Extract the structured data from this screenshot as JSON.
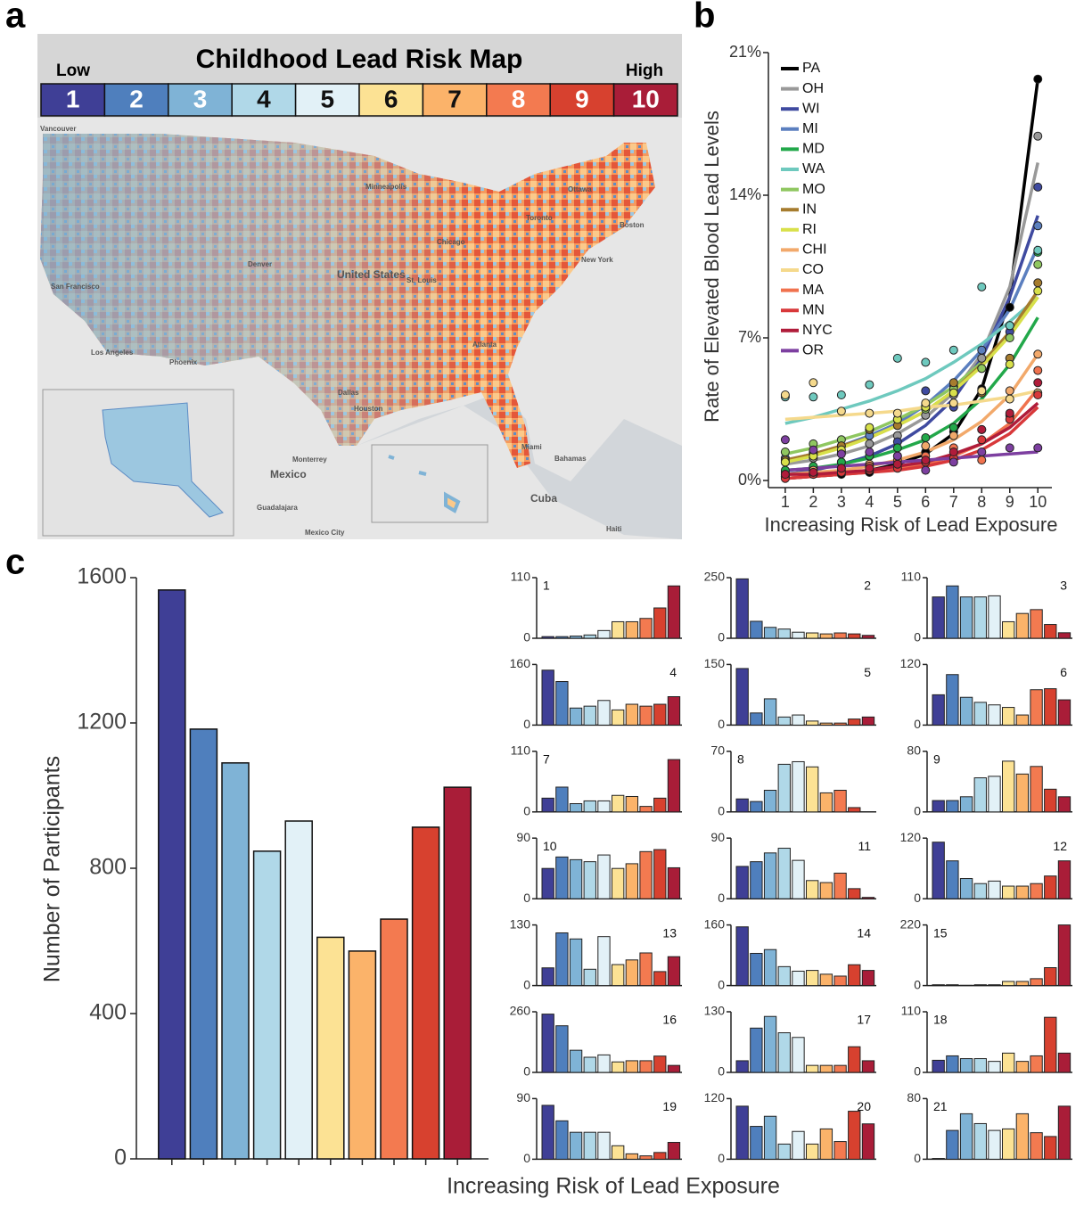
{
  "panel_labels": [
    "a",
    "b",
    "c"
  ],
  "map": {
    "title": "Childhood Lead Risk Map",
    "low_label": "Low",
    "high_label": "High",
    "scale": [
      1,
      2,
      3,
      4,
      5,
      6,
      7,
      8,
      9,
      10
    ],
    "colors": [
      "#3f3f96",
      "#4f7fbd",
      "#7fb3d6",
      "#b0d8e8",
      "#e2f1f7",
      "#fce294",
      "#fbb36a",
      "#f37a50",
      "#d7412f",
      "#a91d38"
    ],
    "place_labels": [
      "Vancouver",
      "Minneapolis",
      "Ottawa",
      "Toronto",
      "Boston",
      "Chicago",
      "New York",
      "Denver",
      "United States",
      "San Francisco",
      "St. Louis",
      "Los Angeles",
      "Phoenix",
      "Dallas",
      "Atlanta",
      "Houston",
      "Monterrey",
      "Mexico",
      "Miami",
      "Bahamas",
      "Cuba",
      "Guadalajara",
      "Mexico City",
      "Haiti"
    ]
  },
  "chart_data": [
    {
      "type": "line",
      "x_label": "Increasing Risk of Lead Exposure",
      "y_label": "Rate of Elevated Blood Lead Levels",
      "x": [
        1,
        2,
        3,
        4,
        5,
        6,
        7,
        8,
        9,
        10
      ],
      "xlim": [
        0.4,
        10.5
      ],
      "xticks": [
        1,
        2,
        3,
        4,
        5,
        6,
        7,
        8,
        9,
        10
      ],
      "ylim": [
        0,
        21
      ],
      "yticks": [
        {
          "value": 0,
          "label": "0%"
        },
        {
          "value": 7,
          "label": "7%"
        },
        {
          "value": 14,
          "label": "14%"
        },
        {
          "value": 21,
          "label": "21%"
        }
      ],
      "series": [
        {
          "name": "PA",
          "color": "#000000",
          "values": [
            0.2,
            0.3,
            0.3,
            0.4,
            0.8,
            1.4,
            2.4,
            4.5,
            8.5,
            19.7
          ],
          "fit": [
            0.1,
            0.2,
            0.3,
            0.5,
            0.8,
            1.3,
            2.3,
            4.5,
            9,
            19.7
          ]
        },
        {
          "name": "OH",
          "color": "#999999",
          "values": [
            0.9,
            1.1,
            1.4,
            1.8,
            2.2,
            3.2,
            4.2,
            6,
            7.6,
            16.9
          ],
          "fit": [
            0.8,
            1,
            1.3,
            1.7,
            2.3,
            3.1,
            4.3,
            6.2,
            9.5,
            15.6
          ]
        },
        {
          "name": "WI",
          "color": "#3f4aa0",
          "values": [
            0.4,
            0.6,
            0.9,
            1.2,
            1.9,
            4.4,
            3.6,
            5.5,
            7.3,
            14.4
          ],
          "fit": [
            0.3,
            0.5,
            0.8,
            1.2,
            1.8,
            2.7,
            4,
            6,
            9,
            13
          ]
        },
        {
          "name": "MI",
          "color": "#5b7fbf",
          "values": [
            1.1,
            1.4,
            1.7,
            2.2,
            2.7,
            3.6,
            4.6,
            6.4,
            7.6,
            12.5
          ],
          "fit": [
            1,
            1.3,
            1.7,
            2.2,
            2.8,
            3.7,
            4.9,
            6.4,
            8.4,
            11.5
          ]
        },
        {
          "name": "MD",
          "color": "#22a84a",
          "values": [
            0.5,
            0.7,
            0.9,
            1.2,
            1.6,
            2.1,
            2.6,
            4.3,
            6,
            11.2
          ],
          "fit": [
            0.5,
            0.6,
            0.8,
            1.1,
            1.5,
            2,
            2.8,
            4,
            5.7,
            8
          ]
        },
        {
          "name": "WA",
          "color": "#6ec9be",
          "values": [
            4.1,
            4.1,
            4.2,
            4.7,
            6,
            5.8,
            6.4,
            9.5,
            7.6,
            11.3
          ],
          "fit": [
            2.8,
            3.1,
            3.5,
            3.9,
            4.4,
            5,
            5.8,
            6.7,
            7.8,
            9
          ]
        },
        {
          "name": "MO",
          "color": "#8fc760",
          "values": [
            1.4,
            1.8,
            2,
            2.5,
            3,
            3.5,
            4.5,
            5.5,
            7,
            10.6
          ],
          "fit": [
            1.3,
            1.6,
            2,
            2.4,
            3,
            3.7,
            4.6,
            5.8,
            7.2,
            9
          ]
        },
        {
          "name": "IN",
          "color": "#a67c2e",
          "values": [
            1,
            1.3,
            1.7,
            2.5,
            2.7,
            3.7,
            4.8,
            4.3,
            6,
            9.7
          ],
          "fit": [
            1,
            1.3,
            1.7,
            2.1,
            2.7,
            3.4,
            4.4,
            5.7,
            7.3,
            9.3
          ]
        },
        {
          "name": "RI",
          "color": "#d8e04a",
          "values": [
            0.9,
            1.2,
            1.5,
            2.6,
            3,
            3.6,
            4.3,
            4.4,
            5.7,
            9.3
          ],
          "fit": [
            0.9,
            1.2,
            1.6,
            2.1,
            2.7,
            3.4,
            4.4,
            5.6,
            7.1,
            9
          ]
        },
        {
          "name": "CHI",
          "color": "#f2a96b",
          "values": [
            0.3,
            0.5,
            0.6,
            0.8,
            1.2,
            1.7,
            2.2,
            2.5,
            4.4,
            6.2
          ],
          "fit": [
            0.3,
            0.4,
            0.5,
            0.7,
            1,
            1.4,
            2,
            2.9,
            4.2,
            6.2
          ]
        },
        {
          "name": "CO",
          "color": "#f5d98c",
          "values": [
            4.2,
            4.8,
            3.4,
            3.3,
            3.3,
            3.8,
            3.8,
            4.4,
            4,
            4.3
          ],
          "fit": [
            3,
            3.1,
            3.2,
            3.3,
            3.4,
            3.6,
            3.7,
            3.9,
            4.1,
            4.4
          ]
        },
        {
          "name": "MA",
          "color": "#f0724e",
          "values": [
            0.2,
            0.3,
            0.5,
            0.7,
            1,
            1.2,
            1.6,
            1,
            3.2,
            5.4
          ],
          "fit": [
            0.1,
            0.2,
            0.3,
            0.4,
            0.6,
            0.8,
            1.2,
            1.8,
            2.8,
            4.5
          ]
        },
        {
          "name": "MN",
          "color": "#d8383a",
          "values": [
            0.1,
            0.3,
            0.4,
            0.5,
            0.6,
            0.9,
            1.1,
            2,
            3,
            4.2
          ],
          "fit": [
            0.1,
            0.2,
            0.3,
            0.4,
            0.5,
            0.7,
            1,
            1.5,
            2.3,
            3.6
          ]
        },
        {
          "name": "NYC",
          "color": "#b01c3a",
          "values": [
            0.3,
            0.4,
            0.6,
            0.6,
            0.8,
            1,
            1.4,
            2.5,
            3.3,
            4.8
          ],
          "fit": [
            0.3,
            0.3,
            0.4,
            0.5,
            0.7,
            0.9,
            1.3,
            1.8,
            2.6,
            3.8
          ]
        },
        {
          "name": "OR",
          "color": "#7d3fa0",
          "values": [
            2,
            1.5,
            1.3,
            1.4,
            1.2,
            0.5,
            0.9,
            1.4,
            1.6,
            1.6
          ],
          "fit": [
            0.5,
            0.6,
            0.7,
            0.8,
            0.9,
            1,
            1.1,
            1.2,
            1.3,
            1.4
          ]
        }
      ]
    },
    {
      "type": "bar",
      "x_label": "Increasing Risk of Lead Exposure",
      "y_label": "Number of Participants",
      "values": [
        1566,
        1183,
        1090,
        847,
        930,
        610,
        572,
        660,
        913,
        1023
      ],
      "colors": [
        "#3f3f96",
        "#4f7fbd",
        "#7fb3d6",
        "#b0d8e8",
        "#e2f1f7",
        "#fce294",
        "#fbb36a",
        "#f37a50",
        "#d7412f",
        "#a91d38"
      ],
      "ylim": [
        0,
        1600
      ],
      "yticks": [
        0,
        400,
        800,
        1200,
        1600
      ]
    },
    {
      "type": "bar",
      "title": "1",
      "title_corner": "left",
      "ylim": [
        0,
        110
      ],
      "yticks": [
        0,
        110
      ],
      "values": [
        3,
        3,
        4,
        6,
        14,
        30,
        30,
        36,
        55,
        95
      ]
    },
    {
      "type": "bar",
      "title": "2",
      "title_corner": "right",
      "ylim": [
        0,
        250
      ],
      "yticks": [
        0,
        250
      ],
      "values": [
        245,
        70,
        45,
        38,
        25,
        22,
        18,
        22,
        18,
        12
      ]
    },
    {
      "type": "bar",
      "title": "3",
      "title_corner": "right",
      "ylim": [
        0,
        110
      ],
      "yticks": [
        0,
        110
      ],
      "values": [
        75,
        95,
        75,
        75,
        77,
        30,
        45,
        52,
        25,
        10
      ]
    },
    {
      "type": "bar",
      "title": "4",
      "title_corner": "right",
      "ylim": [
        0,
        160
      ],
      "yticks": [
        0,
        160
      ],
      "values": [
        145,
        115,
        45,
        50,
        65,
        40,
        55,
        50,
        55,
        75
      ]
    },
    {
      "type": "bar",
      "title": "5",
      "title_corner": "right",
      "ylim": [
        0,
        150
      ],
      "yticks": [
        0,
        150
      ],
      "values": [
        140,
        30,
        65,
        20,
        25,
        10,
        5,
        5,
        15,
        20
      ]
    },
    {
      "type": "bar",
      "title": "6",
      "title_corner": "right",
      "ylim": [
        0,
        120
      ],
      "yticks": [
        0,
        120
      ],
      "values": [
        60,
        100,
        55,
        45,
        40,
        35,
        20,
        70,
        72,
        50
      ]
    },
    {
      "type": "bar",
      "title": "7",
      "title_corner": "left",
      "ylim": [
        0,
        110
      ],
      "yticks": [
        0,
        110
      ],
      "values": [
        25,
        45,
        15,
        20,
        20,
        30,
        28,
        10,
        25,
        95
      ]
    },
    {
      "type": "bar",
      "title": "8",
      "title_corner": "left",
      "ylim": [
        0,
        70
      ],
      "yticks": [
        0,
        70
      ],
      "values": [
        15,
        12,
        25,
        55,
        58,
        52,
        22,
        25,
        5,
        0
      ]
    },
    {
      "type": "bar",
      "title": "9",
      "title_corner": "left",
      "ylim": [
        0,
        80
      ],
      "yticks": [
        0,
        80
      ],
      "values": [
        15,
        15,
        20,
        45,
        47,
        67,
        50,
        60,
        30,
        20
      ]
    },
    {
      "type": "bar",
      "title": "10",
      "title_corner": "left",
      "ylim": [
        0,
        90
      ],
      "yticks": [
        0,
        90
      ],
      "values": [
        45,
        62,
        58,
        55,
        65,
        45,
        52,
        70,
        73,
        46
      ]
    },
    {
      "type": "bar",
      "title": "11",
      "title_corner": "right",
      "ylim": [
        0,
        90
      ],
      "yticks": [
        0,
        90
      ],
      "values": [
        48,
        55,
        68,
        75,
        57,
        27,
        24,
        38,
        15,
        2
      ]
    },
    {
      "type": "bar",
      "title": "12",
      "title_corner": "right",
      "ylim": [
        0,
        120
      ],
      "yticks": [
        0,
        120
      ],
      "values": [
        112,
        75,
        40,
        30,
        35,
        25,
        25,
        30,
        45,
        75
      ]
    },
    {
      "type": "bar",
      "title": "13",
      "title_corner": "right",
      "ylim": [
        0,
        130
      ],
      "yticks": [
        0,
        130
      ],
      "values": [
        38,
        113,
        100,
        35,
        105,
        45,
        55,
        70,
        30,
        62
      ]
    },
    {
      "type": "bar",
      "title": "14",
      "title_corner": "right",
      "ylim": [
        0,
        160
      ],
      "yticks": [
        0,
        160
      ],
      "values": [
        155,
        85,
        95,
        50,
        38,
        40,
        30,
        25,
        55,
        40
      ]
    },
    {
      "type": "bar",
      "title": "15",
      "title_corner": "left",
      "ylim": [
        0,
        220
      ],
      "yticks": [
        0,
        220
      ],
      "values": [
        3,
        3,
        1,
        3,
        3,
        15,
        15,
        25,
        65,
        220
      ]
    },
    {
      "type": "bar",
      "title": "16",
      "title_corner": "right",
      "ylim": [
        0,
        260
      ],
      "yticks": [
        0,
        260
      ],
      "values": [
        250,
        200,
        95,
        65,
        75,
        45,
        50,
        50,
        70,
        30
      ]
    },
    {
      "type": "bar",
      "title": "17",
      "title_corner": "right",
      "ylim": [
        0,
        130
      ],
      "yticks": [
        0,
        130
      ],
      "values": [
        25,
        95,
        120,
        85,
        75,
        15,
        15,
        15,
        55,
        25
      ]
    },
    {
      "type": "bar",
      "title": "18",
      "title_corner": "left",
      "ylim": [
        0,
        110
      ],
      "yticks": [
        0,
        110
      ],
      "values": [
        22,
        30,
        25,
        25,
        20,
        35,
        20,
        30,
        100,
        35
      ]
    },
    {
      "type": "bar",
      "title": "19",
      "title_corner": "right",
      "ylim": [
        0,
        90
      ],
      "yticks": [
        0,
        90
      ],
      "values": [
        80,
        57,
        40,
        40,
        40,
        20,
        8,
        5,
        10,
        25
      ]
    },
    {
      "type": "bar",
      "title": "20",
      "title_corner": "right",
      "ylim": [
        0,
        120
      ],
      "yticks": [
        0,
        120
      ],
      "values": [
        105,
        65,
        85,
        30,
        55,
        30,
        60,
        35,
        95,
        70
      ]
    },
    {
      "type": "bar",
      "title": "21",
      "title_corner": "left",
      "ylim": [
        0,
        80
      ],
      "yticks": [
        0,
        80
      ],
      "values": [
        1,
        38,
        60,
        47,
        38,
        40,
        60,
        35,
        30,
        70
      ]
    }
  ]
}
